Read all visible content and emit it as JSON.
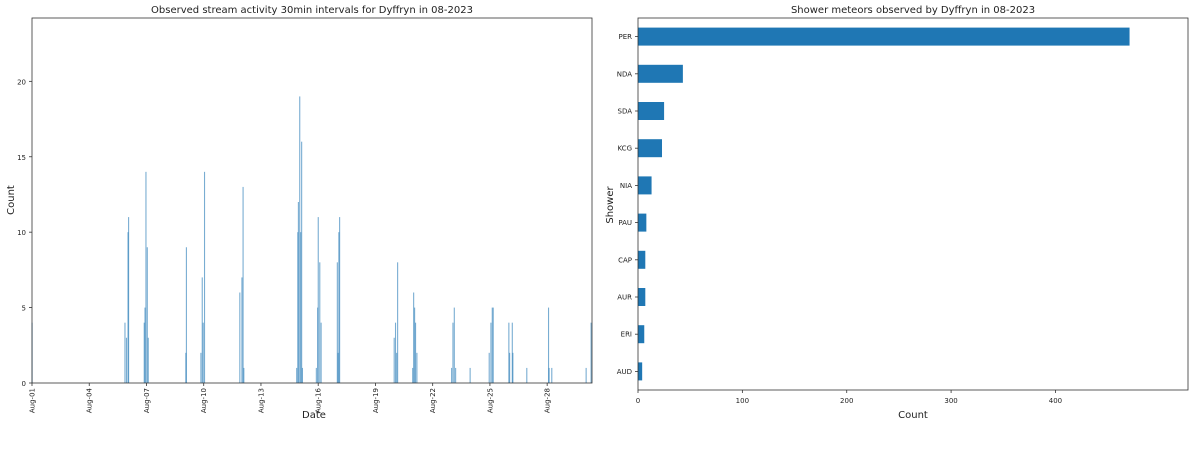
{
  "chart_data": [
    {
      "type": "bar",
      "title": "Observed stream activity 30min intervals for Dyffryn in 08-2023",
      "xlabel": "Date",
      "ylabel": "Count",
      "x_units": "days since Aug-01 00:00 (30-minute bins)",
      "xlim": [
        0,
        29.35
      ],
      "ylim": [
        0,
        24.2
      ],
      "yticks": [
        0,
        5,
        10,
        15,
        20
      ],
      "xticks": [
        {
          "day": 0,
          "label": "Aug-01"
        },
        {
          "day": 3,
          "label": "Aug-04"
        },
        {
          "day": 6,
          "label": "Aug-07"
        },
        {
          "day": 9,
          "label": "Aug-10"
        },
        {
          "day": 12,
          "label": "Aug-13"
        },
        {
          "day": 15,
          "label": "Aug-16"
        },
        {
          "day": 18,
          "label": "Aug-19"
        },
        {
          "day": 21,
          "label": "Aug-22"
        },
        {
          "day": 24,
          "label": "Aug-25"
        },
        {
          "day": 27,
          "label": "Aug-28"
        }
      ],
      "color": "#1f77b4",
      "points": [
        [
          0.0,
          4
        ],
        [
          4.87,
          4
        ],
        [
          4.95,
          3
        ],
        [
          5.03,
          10
        ],
        [
          5.06,
          11
        ],
        [
          5.88,
          4
        ],
        [
          5.92,
          5
        ],
        [
          5.97,
          14
        ],
        [
          6.04,
          9
        ],
        [
          6.09,
          3
        ],
        [
          8.06,
          2
        ],
        [
          8.09,
          9
        ],
        [
          8.85,
          2
        ],
        [
          8.92,
          7
        ],
        [
          8.97,
          4
        ],
        [
          9.04,
          14
        ],
        [
          10.89,
          6
        ],
        [
          11.0,
          7
        ],
        [
          11.06,
          13
        ],
        [
          11.1,
          1
        ],
        [
          13.87,
          1
        ],
        [
          13.93,
          10
        ],
        [
          13.96,
          12
        ],
        [
          14.03,
          19
        ],
        [
          14.08,
          10
        ],
        [
          14.13,
          16
        ],
        [
          14.17,
          1
        ],
        [
          14.9,
          1
        ],
        [
          14.97,
          5
        ],
        [
          15.0,
          11
        ],
        [
          15.08,
          8
        ],
        [
          15.15,
          4
        ],
        [
          16.0,
          8
        ],
        [
          16.04,
          2
        ],
        [
          16.08,
          10
        ],
        [
          16.12,
          11
        ],
        [
          18.98,
          3
        ],
        [
          19.05,
          4
        ],
        [
          19.11,
          2
        ],
        [
          19.16,
          8
        ],
        [
          19.95,
          1
        ],
        [
          20.0,
          6
        ],
        [
          20.05,
          5
        ],
        [
          20.1,
          4
        ],
        [
          20.17,
          2
        ],
        [
          21.99,
          1
        ],
        [
          22.06,
          4
        ],
        [
          22.13,
          5
        ],
        [
          22.2,
          1
        ],
        [
          22.96,
          1
        ],
        [
          23.96,
          2
        ],
        [
          24.05,
          4
        ],
        [
          24.12,
          5
        ],
        [
          24.17,
          5
        ],
        [
          24.99,
          4
        ],
        [
          25.03,
          2
        ],
        [
          25.17,
          4
        ],
        [
          25.2,
          2
        ],
        [
          25.93,
          1
        ],
        [
          27.07,
          5
        ],
        [
          27.1,
          1
        ],
        [
          27.24,
          1
        ],
        [
          29.04,
          1
        ],
        [
          29.3,
          4
        ]
      ]
    },
    {
      "type": "bar",
      "orientation": "horizontal",
      "title": "Shower meteors observed by Dyffryn in 08-2023",
      "xlabel": "Count",
      "ylabel": "Shower",
      "xlim": [
        0,
        527
      ],
      "xticks": [
        0,
        100,
        200,
        300,
        400
      ],
      "color": "#1f77b4",
      "categories": [
        "PER",
        "NDA",
        "SDA",
        "KCG",
        "NIA",
        "PAU",
        "CAP",
        "AUR",
        "ERI",
        "AUD"
      ],
      "values": [
        471,
        43,
        25,
        23,
        13,
        8,
        7,
        7,
        6,
        4
      ]
    }
  ]
}
